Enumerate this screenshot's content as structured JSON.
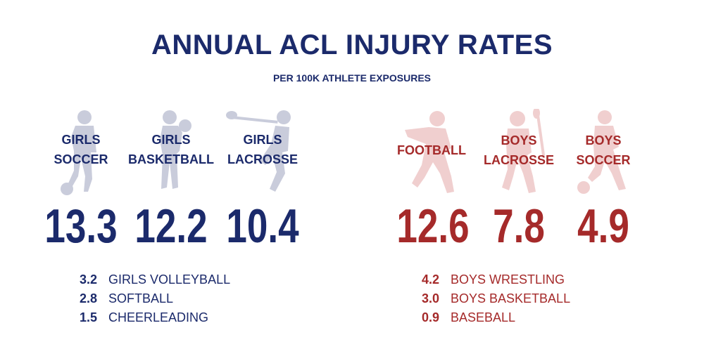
{
  "chart_data": {
    "type": "table",
    "title": "ANNUAL ACL INJURY RATES",
    "subtitle": "PER 100K ATHLETE EXPOSURES",
    "featured_girls": [
      {
        "label_line1": "GIRLS",
        "label_line2": "SOCCER",
        "value": "13.3"
      },
      {
        "label_line1": "GIRLS",
        "label_line2": "BASKETBALL",
        "value": "12.2"
      },
      {
        "label_line1": "GIRLS",
        "label_line2": "LACROSSE",
        "value": "10.4"
      }
    ],
    "featured_boys": [
      {
        "label_line1": "FOOTBALL",
        "label_line2": "",
        "value": "12.6"
      },
      {
        "label_line1": "BOYS",
        "label_line2": "LACROSSE",
        "value": "7.8"
      },
      {
        "label_line1": "BOYS",
        "label_line2": "SOCCER",
        "value": "4.9"
      }
    ],
    "other_girls": [
      {
        "value": "3.2",
        "name": "GIRLS VOLLEYBALL"
      },
      {
        "value": "2.8",
        "name": "SOFTBALL"
      },
      {
        "value": "1.5",
        "name": "CHEERLEADING"
      }
    ],
    "other_boys": [
      {
        "value": "4.2",
        "name": "BOYS WRESTLING"
      },
      {
        "value": "3.0",
        "name": "BOYS BASKETBALL"
      },
      {
        "value": "0.9",
        "name": "BASEBALL"
      }
    ]
  },
  "colors": {
    "girls": "#1b2a6b",
    "girls_silhouette": "#c9ccdb",
    "boys": "#a52a2a",
    "boys_silhouette": "#f0cfcf"
  }
}
